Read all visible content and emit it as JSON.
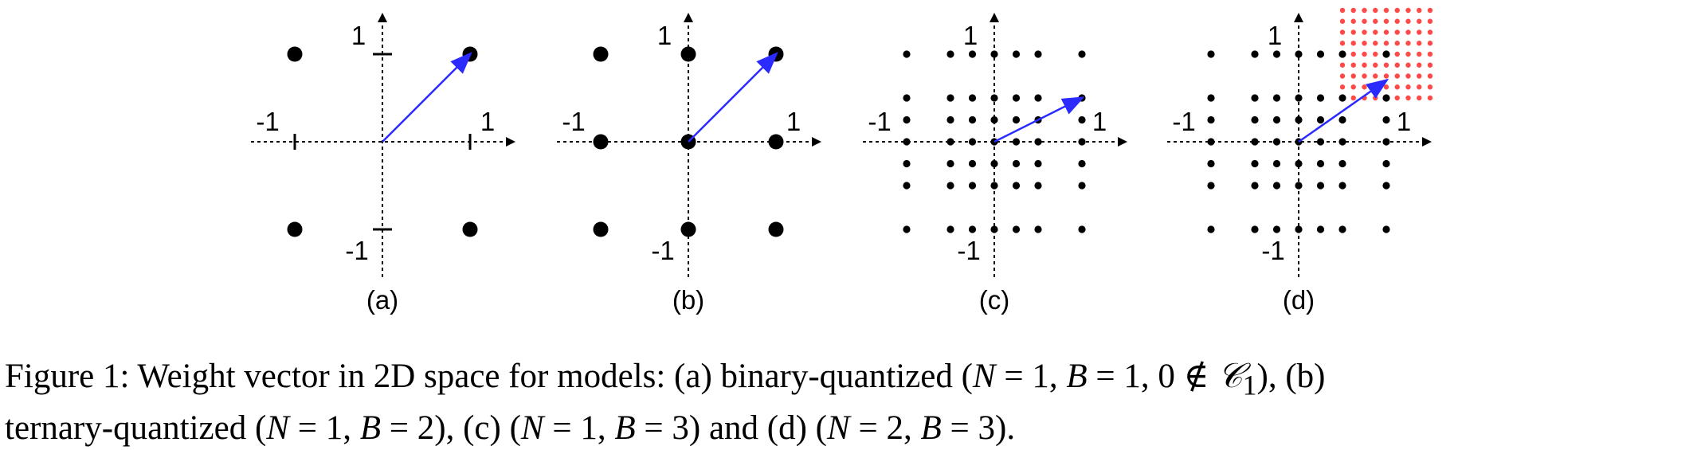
{
  "panels": [
    {
      "label": "(a)",
      "tick_pos": "1",
      "tick_neg": "-1",
      "points": [
        [
          -1,
          1
        ],
        [
          1,
          1
        ],
        [
          -1,
          -1
        ],
        [
          1,
          -1
        ]
      ],
      "dot_size": "large",
      "vector": [
        1,
        1
      ],
      "tick_marks": true,
      "red_region": null
    },
    {
      "label": "(b)",
      "tick_pos": "1",
      "tick_neg": "-1",
      "points": [
        [
          -1,
          1
        ],
        [
          0,
          1
        ],
        [
          1,
          1
        ],
        [
          -1,
          0
        ],
        [
          0,
          0
        ],
        [
          1,
          0
        ],
        [
          -1,
          -1
        ],
        [
          0,
          -1
        ],
        [
          1,
          -1
        ]
      ],
      "dot_size": "large",
      "vector": [
        1,
        1
      ],
      "tick_marks": false,
      "red_region": null
    },
    {
      "label": "(c)",
      "tick_pos": "1",
      "tick_neg": "-1",
      "grid_values": [
        -1,
        -0.5,
        -0.25,
        0,
        0.25,
        0.5,
        1
      ],
      "grid_values_x": [
        -1,
        -0.5,
        -0.25,
        0,
        0.25,
        0.5,
        1
      ],
      "grid_values_y": [
        -1,
        -0.5,
        -0.25,
        0,
        0.25,
        0.5,
        1
      ],
      "dot_size": "small",
      "vector": [
        1,
        0.5
      ],
      "tick_marks": false,
      "red_region": null
    },
    {
      "label": "(d)",
      "tick_pos": "1",
      "tick_neg": "-1",
      "grid_values_x": [
        -1,
        -0.5,
        -0.25,
        0,
        0.25,
        0.5,
        1
      ],
      "grid_values_y": [
        -1,
        -0.5,
        -0.25,
        0,
        0.25,
        0.5,
        1
      ],
      "dot_size": "small",
      "vector": [
        1,
        0.7
      ],
      "tick_marks": false,
      "red_region": {
        "x": [
          0.5,
          0.625,
          0.75,
          0.875,
          1,
          1.125,
          1.25,
          1.375,
          1.5
        ],
        "y": [
          0.5,
          0.625,
          0.75,
          0.875,
          1,
          1.125,
          1.25,
          1.375,
          1.5
        ]
      }
    }
  ],
  "colors": {
    "vector": "#2b2bff",
    "red": "#ff4a4a",
    "dot": "#000000"
  },
  "caption": {
    "line1_prefix": "Figure 1: Weight vector in 2D space for models: (a) binary-quantized (",
    "line1_math1": "N",
    "line1_eq1": " = 1, ",
    "line1_math2": "B",
    "line1_eq2": " = 1, 0 ∉ ",
    "line1_math3": "𝒞",
    "line1_sub": "1",
    "line1_suffix": "), (b)",
    "line2_prefix": "ternary-quantized (",
    "line2_a": "N",
    "line2_b": " = 1, ",
    "line2_c": "B",
    "line2_d": " = 2), (c) (",
    "line2_e": "N",
    "line2_f": " = 1, ",
    "line2_g": "B",
    "line2_h": " = 3) and (d) (",
    "line2_i": "N",
    "line2_j": " = 2, ",
    "line2_k": "B",
    "line2_l": " = 3)."
  }
}
